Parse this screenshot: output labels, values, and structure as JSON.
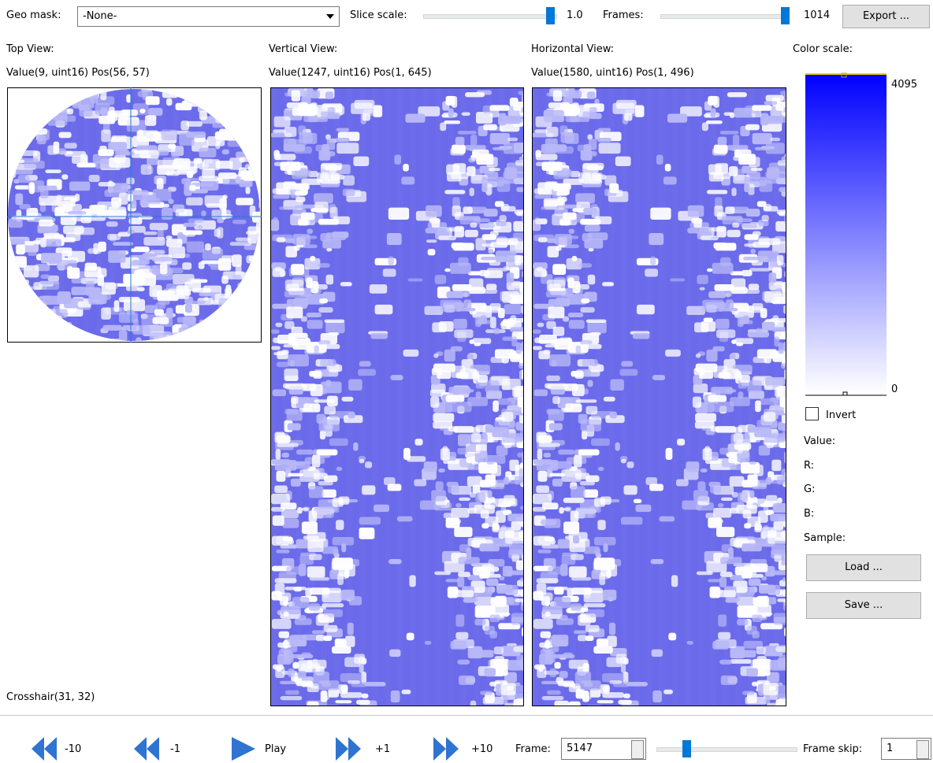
{
  "toolbar": {
    "geo_mask_label": "Geo mask:",
    "geo_mask_value": "-None-",
    "slice_scale_label": "Slice scale:",
    "slice_scale_value": "1.0",
    "frames_label": "Frames:",
    "frames_value": "1014",
    "export_button": "Export ..."
  },
  "views": [
    {
      "title": "Top View:",
      "info": "Value(9, uint16) Pos(56, 57)"
    },
    {
      "title": "Vertical View:",
      "info": "Value(1247, uint16) Pos(1, 645)"
    },
    {
      "title": "Horizontal View:",
      "info": "Value(1580, uint16) Pos(1, 496)"
    }
  ],
  "color_scale": {
    "title": "Color scale:",
    "max": "4095",
    "min": "0",
    "invert": "Invert",
    "value": "Value:",
    "r": "R:",
    "g": "G:",
    "b": "B:",
    "sample": "Sample:",
    "load": "Load ...",
    "save": "Save ..."
  },
  "crosshair": "Crosshair(31, 32)",
  "controls": {
    "back10": "-10",
    "back1": "-1",
    "play": "Play",
    "fwd1": "+1",
    "fwd10": "+10",
    "frame_label": "Frame:",
    "frame_value": "5147",
    "frame_skip_label": "Frame skip:",
    "frame_skip_value": "1"
  }
}
